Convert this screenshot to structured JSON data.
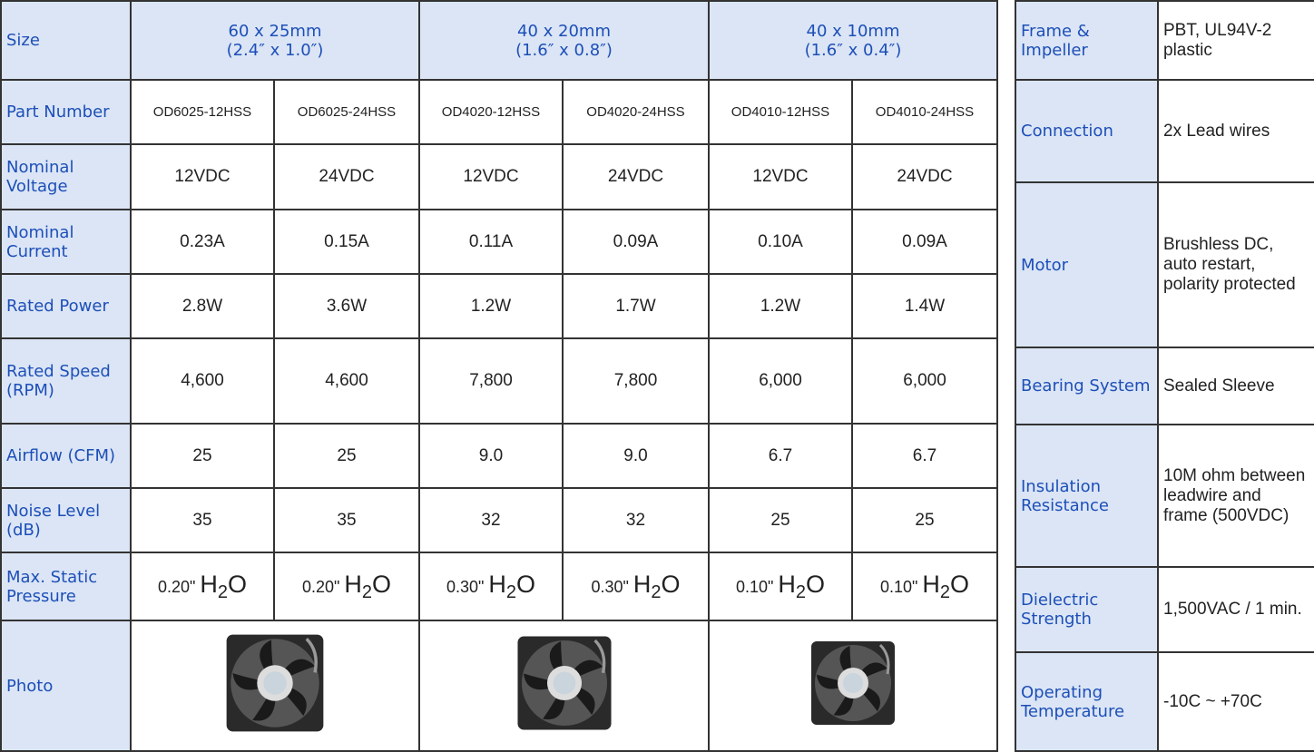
{
  "spec_table": {
    "header": {
      "label": "Size",
      "groups": [
        {
          "line1": "60 x 25mm",
          "line2": "(2.4″ x 1.0″)"
        },
        {
          "line1": "40 x 20mm",
          "line2": "(1.6″ x 0.8″)"
        },
        {
          "line1": "40 x 10mm",
          "line2": "(1.6″ x 0.4″)"
        }
      ]
    },
    "rows": [
      {
        "label": "Part Number",
        "cells": [
          "OD6025-12HSS",
          "OD6025-24HSS",
          "OD4020-12HSS",
          "OD4020-24HSS",
          "OD4010-12HSS",
          "OD4010-24HSS"
        ]
      },
      {
        "label": "Nominal Voltage",
        "cells": [
          "12VDC",
          "24VDC",
          "12VDC",
          "24VDC",
          "12VDC",
          "24VDC"
        ]
      },
      {
        "label": "Nominal Current",
        "cells": [
          "0.23A",
          "0.15A",
          "0.11A",
          "0.09A",
          "0.10A",
          "0.09A"
        ]
      },
      {
        "label": "Rated Power",
        "cells": [
          "2.8W",
          "3.6W",
          "1.2W",
          "1.7W",
          "1.2W",
          "1.4W"
        ]
      },
      {
        "label": "Rated Speed (RPM)",
        "cells": [
          "4,600",
          "4,600",
          "7,800",
          "7,800",
          "6,000",
          "6,000"
        ]
      },
      {
        "label": "Airflow (CFM)",
        "cells": [
          "25",
          "25",
          "9.0",
          "9.0",
          "6.7",
          "6.7"
        ]
      },
      {
        "label": "Noise Level (dB)",
        "cells": [
          "35",
          "35",
          "32",
          "32",
          "25",
          "25"
        ]
      }
    ],
    "pressure": {
      "label": "Max. Static Pressure",
      "cells": [
        {
          "value": "0.20\"",
          "chem": [
            "H",
            "2",
            "O"
          ]
        },
        {
          "value": "0.20\"",
          "chem": [
            "H",
            "2",
            "O"
          ]
        },
        {
          "value": "0.30\"",
          "chem": [
            "H",
            "2",
            "O"
          ]
        },
        {
          "value": "0.30\"",
          "chem": [
            "H",
            "2",
            "O"
          ]
        },
        {
          "value": "0.10\"",
          "chem": [
            "H",
            "2",
            "O"
          ]
        },
        {
          "value": "0.10\"",
          "chem": [
            "H",
            "2",
            "O"
          ]
        }
      ]
    },
    "photo": {
      "label": "Photo"
    }
  },
  "properties": {
    "rows": [
      {
        "label": "Frame & Impeller",
        "value": "PBT, UL94V-2 plastic"
      },
      {
        "label": "Connection",
        "value": "2x Lead wires"
      },
      {
        "label": "Motor",
        "value": "Brushless DC, auto restart, polarity protected"
      },
      {
        "label": "Bearing System",
        "value": "Sealed Sleeve"
      },
      {
        "label": "Insulation Resistance",
        "value": "10M ohm between leadwire and frame (500VDC)"
      },
      {
        "label": "Dielectric Strength",
        "value": "1,500VAC / 1 min."
      },
      {
        "label": "Operating Temperature",
        "value": "-10C ~ +70C"
      }
    ]
  }
}
